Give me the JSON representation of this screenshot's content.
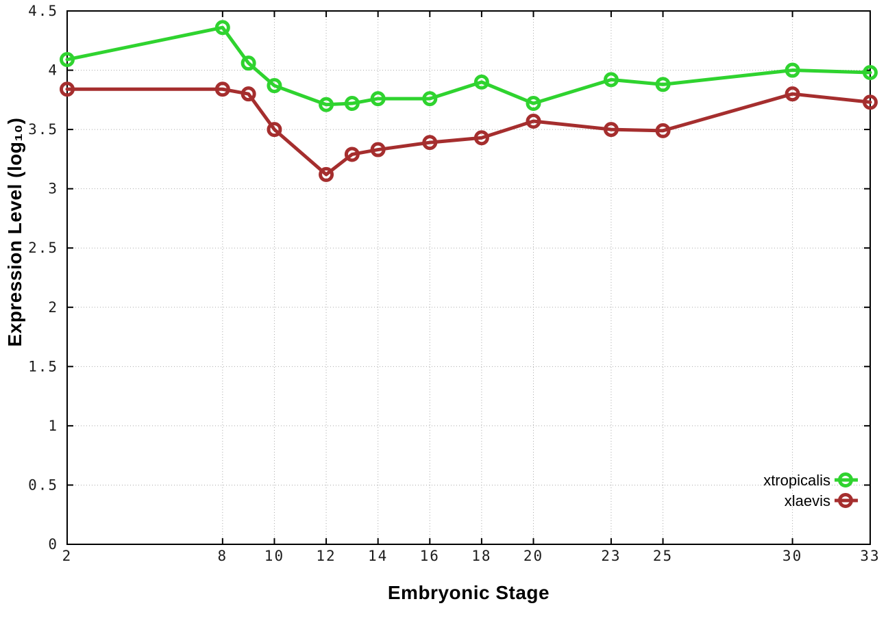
{
  "figure": {
    "xlabel": "Embryonic Stage",
    "ylabel": "Expression Level (log₁₀)"
  },
  "chart_data": {
    "type": "line",
    "title": "",
    "xlabel": "Embryonic Stage",
    "ylabel": "Expression Level (log10)",
    "x": [
      2,
      8,
      9,
      10,
      12,
      13,
      14,
      16,
      18,
      20,
      23,
      25,
      30,
      33
    ],
    "series": [
      {
        "name": "xtropicalis",
        "color": "#2fd32f",
        "marker": "open-circle",
        "values": [
          4.09,
          4.36,
          4.06,
          3.87,
          3.71,
          3.72,
          3.76,
          3.76,
          3.9,
          3.72,
          3.92,
          3.88,
          4.0,
          3.98
        ]
      },
      {
        "name": "xlaevis",
        "color": "#a52e2e",
        "marker": "open-circle",
        "values": [
          3.84,
          3.84,
          3.8,
          3.5,
          3.12,
          3.29,
          3.33,
          3.39,
          3.43,
          3.57,
          3.5,
          3.49,
          3.8,
          3.73
        ]
      }
    ],
    "xlim": [
      2,
      33
    ],
    "ylim": [
      0,
      4.5
    ],
    "xticks": [
      2,
      8,
      10,
      12,
      14,
      16,
      18,
      20,
      23,
      25,
      30,
      33
    ],
    "yticks": [
      "0",
      "0.5",
      "1",
      "1.5",
      "2",
      "2.5",
      "3",
      "3.5",
      "4",
      "4.5"
    ],
    "grid": true,
    "grid_style": "dotted",
    "legend_position": "bottom-right",
    "legend_entries": [
      "xtropicalis",
      "xlaevis"
    ],
    "colors": {
      "background": "#ffffff",
      "axis_border": "#000000",
      "tick_text": "#1c1c1c",
      "grid": "#a9a9a9"
    }
  }
}
